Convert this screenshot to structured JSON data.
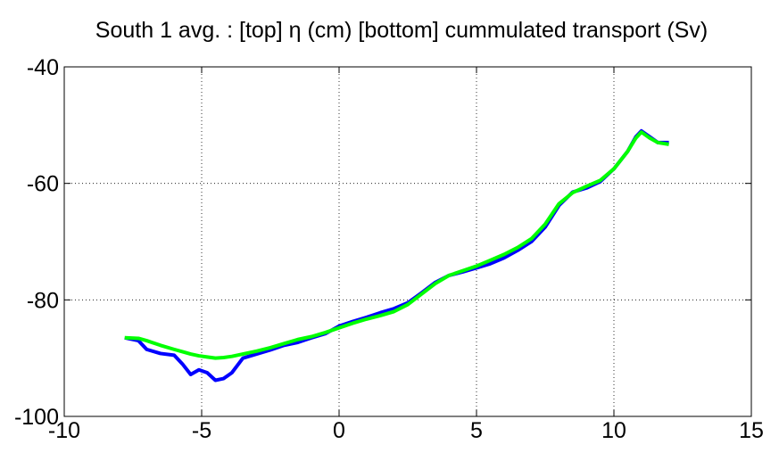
{
  "chart_data": {
    "type": "line",
    "title": "South 1 avg. : [top]  η (cm) [bottom] cummulated transport (Sv)",
    "x": [
      -7.8,
      -7.3,
      -7,
      -6.5,
      -6,
      -5.7,
      -5.4,
      -5.1,
      -4.8,
      -4.5,
      -4.2,
      -3.9,
      -3.5,
      -3,
      -2.5,
      -2,
      -1.5,
      -1,
      -0.5,
      0,
      0.5,
      1,
      1.5,
      2,
      2.5,
      3,
      3.5,
      4,
      4.5,
      5,
      5.5,
      6,
      6.5,
      7,
      7.5,
      8,
      8.5,
      9,
      9.5,
      10,
      10.5,
      10.8,
      11,
      11.3,
      11.6,
      12
    ],
    "series": [
      {
        "color": "#0000ff",
        "values": [
          -86.5,
          -87,
          -88.5,
          -89.2,
          -89.5,
          -91,
          -92.8,
          -92,
          -92.5,
          -93.8,
          -93.5,
          -92.5,
          -90,
          -89.3,
          -88.6,
          -87.8,
          -87.3,
          -86.5,
          -85.8,
          -84.5,
          -83.7,
          -83,
          -82.2,
          -81.5,
          -80.5,
          -78.8,
          -77,
          -75.8,
          -75.2,
          -74.5,
          -73.8,
          -72.8,
          -71.5,
          -70,
          -67.5,
          -63.8,
          -61.5,
          -60.8,
          -59.7,
          -57.5,
          -54.5,
          -52,
          -51,
          -52,
          -53,
          -53
        ]
      },
      {
        "color": "#00ff00",
        "values": [
          -86.5,
          -86.6,
          -87,
          -87.8,
          -88.5,
          -88.9,
          -89.3,
          -89.6,
          -89.8,
          -90,
          -89.9,
          -89.7,
          -89.3,
          -88.8,
          -88.2,
          -87.5,
          -86.8,
          -86.3,
          -85.6,
          -84.8,
          -84,
          -83.3,
          -82.7,
          -82,
          -80.8,
          -79,
          -77.2,
          -75.8,
          -75,
          -74.2,
          -73.2,
          -72.2,
          -71,
          -69.5,
          -67,
          -63.5,
          -61.6,
          -60.5,
          -59.5,
          -57.5,
          -54.5,
          -52.2,
          -51.2,
          -52.2,
          -53,
          -53.3
        ]
      }
    ],
    "xlim": [
      -10,
      15
    ],
    "xticks": [
      -10,
      -5,
      0,
      5,
      10,
      15
    ],
    "ylim": [
      -100,
      -40
    ],
    "yticks": [
      -100,
      -80,
      -60,
      -40
    ],
    "grid": true
  }
}
